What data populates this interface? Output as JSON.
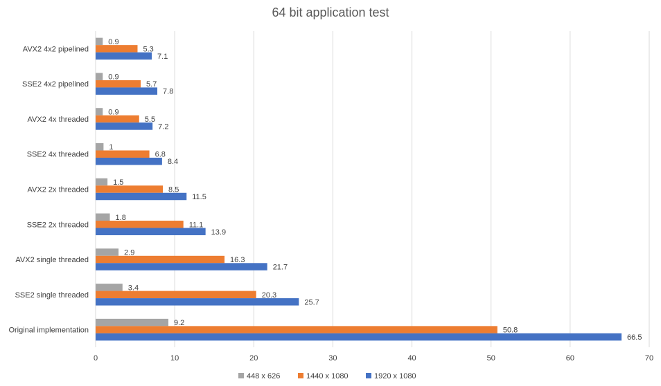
{
  "chart_data": {
    "type": "bar",
    "orientation": "horizontal",
    "title": "64 bit application test",
    "categories": [
      "AVX2 4x2 pipelined",
      "SSE2 4x2 pipelined",
      "AVX2 4x threaded",
      "SSE2 4x threaded",
      "AVX2 2x threaded",
      "SSE2 2x threaded",
      "AVX2 single threaded",
      "SSE2 single threaded",
      "Original implementation"
    ],
    "series": [
      {
        "name": "448 x 626",
        "color": "#a5a5a5",
        "values": [
          0.9,
          0.9,
          0.9,
          1,
          1.5,
          1.8,
          2.9,
          3.4,
          9.2
        ]
      },
      {
        "name": "1440 x 1080",
        "color": "#ed7d31",
        "values": [
          5.3,
          5.7,
          5.5,
          6.8,
          8.5,
          11.1,
          16.3,
          20.3,
          50.8
        ]
      },
      {
        "name": "1920 x 1080",
        "color": "#4472c4",
        "values": [
          7.1,
          7.8,
          7.2,
          8.4,
          11.5,
          13.9,
          21.7,
          25.7,
          66.5
        ]
      }
    ],
    "xlim": [
      0,
      70
    ],
    "xticks": [
      0,
      10,
      20,
      30,
      40,
      50,
      60,
      70
    ],
    "xlabel": "",
    "ylabel": "",
    "grid": true,
    "legend": "bottom"
  }
}
